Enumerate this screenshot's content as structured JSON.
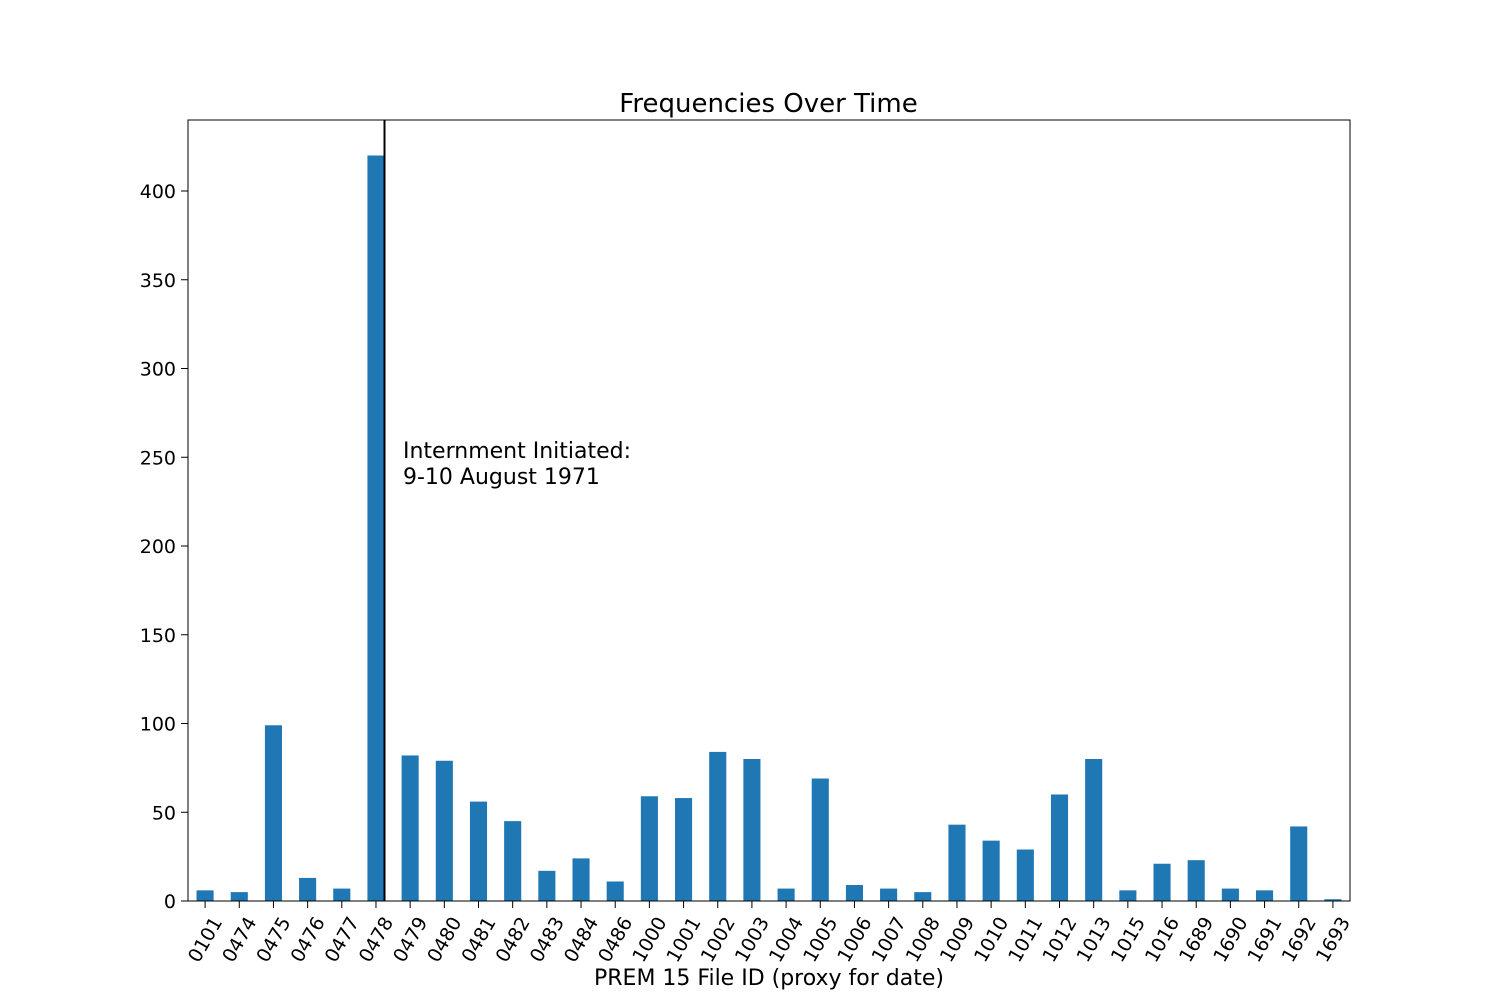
{
  "chart_data": {
    "type": "bar",
    "title": "Frequencies Over Time",
    "xlabel": "PREM 15 File ID (proxy for date)",
    "ylabel": "",
    "ylim": [
      0,
      440
    ],
    "yticks": [
      0,
      50,
      100,
      150,
      200,
      250,
      300,
      350,
      400
    ],
    "categories": [
      "0101",
      "0474",
      "0475",
      "0476",
      "0477",
      "0478",
      "0479",
      "0480",
      "0481",
      "0482",
      "0483",
      "0484",
      "0486",
      "1000",
      "1001",
      "1002",
      "1003",
      "1004",
      "1005",
      "1006",
      "1007",
      "1008",
      "1009",
      "1010",
      "1011",
      "1012",
      "1013",
      "1015",
      "1016",
      "1689",
      "1690",
      "1691",
      "1692",
      "1693"
    ],
    "values": [
      6,
      5,
      99,
      13,
      7,
      420,
      82,
      79,
      56,
      45,
      17,
      24,
      11,
      59,
      58,
      84,
      80,
      7,
      69,
      9,
      7,
      5,
      43,
      34,
      29,
      60,
      80,
      6,
      21,
      23,
      7,
      6,
      42,
      1
    ],
    "bar_color": "#1f77b4",
    "grid": false,
    "legend": "none",
    "annotation": {
      "line1": "Internment Initiated:",
      "line2": "9-10 August 1971",
      "marker_x": 5.25,
      "line_color": "#000000"
    }
  }
}
